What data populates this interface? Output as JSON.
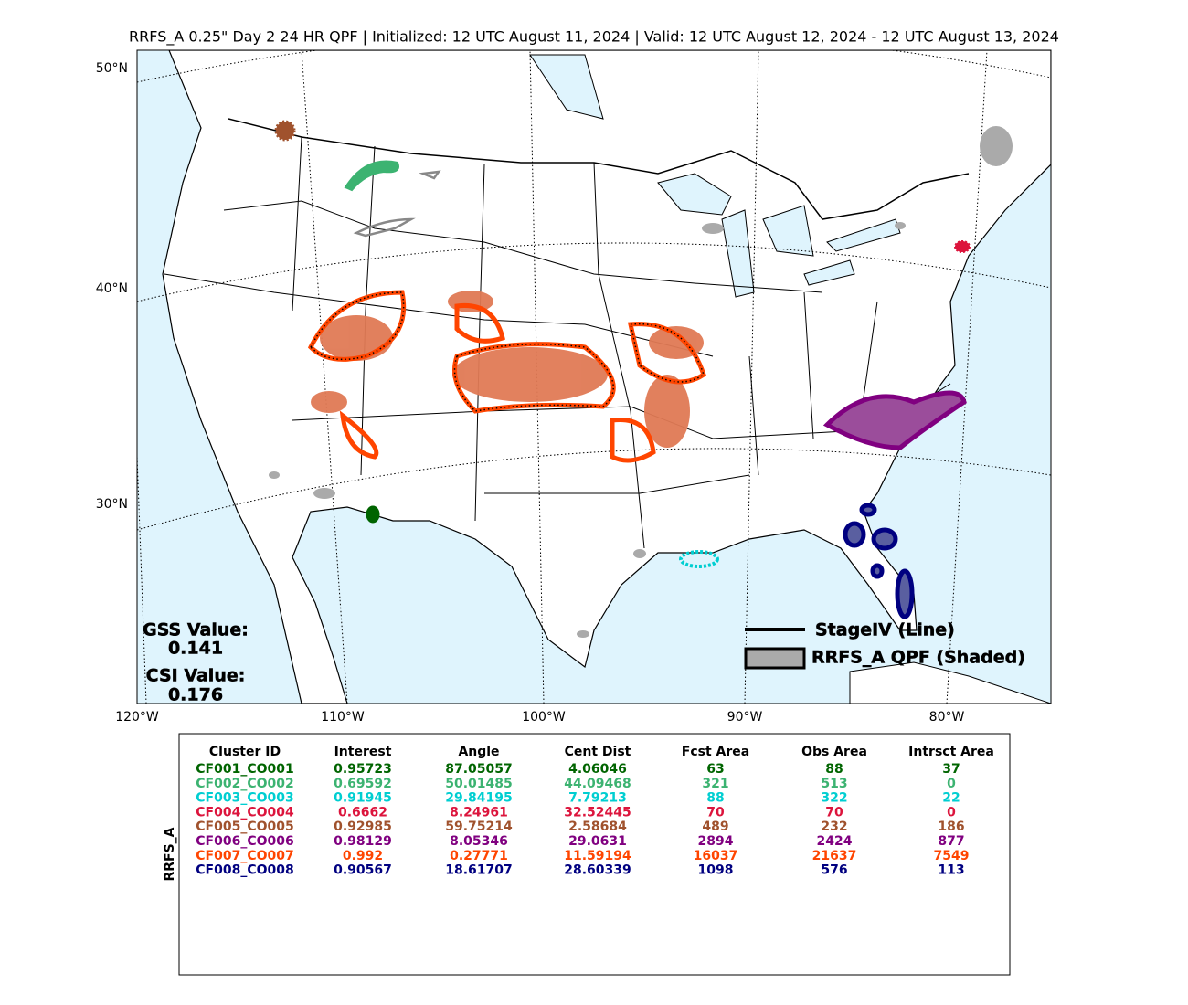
{
  "title": "RRFS_A 0.25\" Day 2 24 HR QPF | Initialized: 12 UTC August 11, 2024 | Valid: 12 UTC August 12, 2024 - 12 UTC August 13, 2024",
  "map": {
    "lat_labels": [
      "50°N",
      "40°N",
      "30°N"
    ],
    "lon_labels": [
      "120°W",
      "110°W",
      "100°W",
      "90°W",
      "80°W"
    ]
  },
  "scores": {
    "gss_label": "GSS Value:",
    "gss_value": "0.141",
    "csi_label": "CSI Value:",
    "csi_value": "0.176"
  },
  "legend": {
    "line": "StageIV (Line)",
    "shaded": "RRFS_A QPF (Shaded)"
  },
  "table": {
    "row_label": "RRFS_A",
    "columns": [
      "Cluster ID",
      "Interest",
      "Angle",
      "Cent Dist",
      "Fcst Area",
      "Obs Area",
      "Intrsct Area"
    ],
    "rows": [
      {
        "color": "#006400",
        "cells": [
          "CF001_CO001",
          "0.95723",
          "87.05057",
          "4.06046",
          "63",
          "88",
          "37"
        ]
      },
      {
        "color": "#3cb371",
        "cells": [
          "CF002_CO002",
          "0.69592",
          "50.01485",
          "44.09468",
          "321",
          "513",
          "0"
        ]
      },
      {
        "color": "#00ced1",
        "cells": [
          "CF003_CO003",
          "0.91945",
          "29.84195",
          "7.79213",
          "88",
          "322",
          "22"
        ]
      },
      {
        "color": "#dc143c",
        "cells": [
          "CF004_CO004",
          "0.6662",
          "8.24961",
          "32.52445",
          "70",
          "70",
          "0"
        ]
      },
      {
        "color": "#a0522d",
        "cells": [
          "CF005_CO005",
          "0.92985",
          "59.75214",
          "2.58684",
          "489",
          "232",
          "186"
        ]
      },
      {
        "color": "#800080",
        "cells": [
          "CF006_CO006",
          "0.98129",
          "8.05346",
          "29.0631",
          "2894",
          "2424",
          "877"
        ]
      },
      {
        "color": "#ff4500",
        "cells": [
          "CF007_CO007",
          "0.992",
          "0.27771",
          "11.59194",
          "16037",
          "21637",
          "7549"
        ]
      },
      {
        "color": "#000080",
        "cells": [
          "CF008_CO008",
          "0.90567",
          "18.61707",
          "28.60339",
          "1098",
          "576",
          "113"
        ]
      }
    ]
  }
}
